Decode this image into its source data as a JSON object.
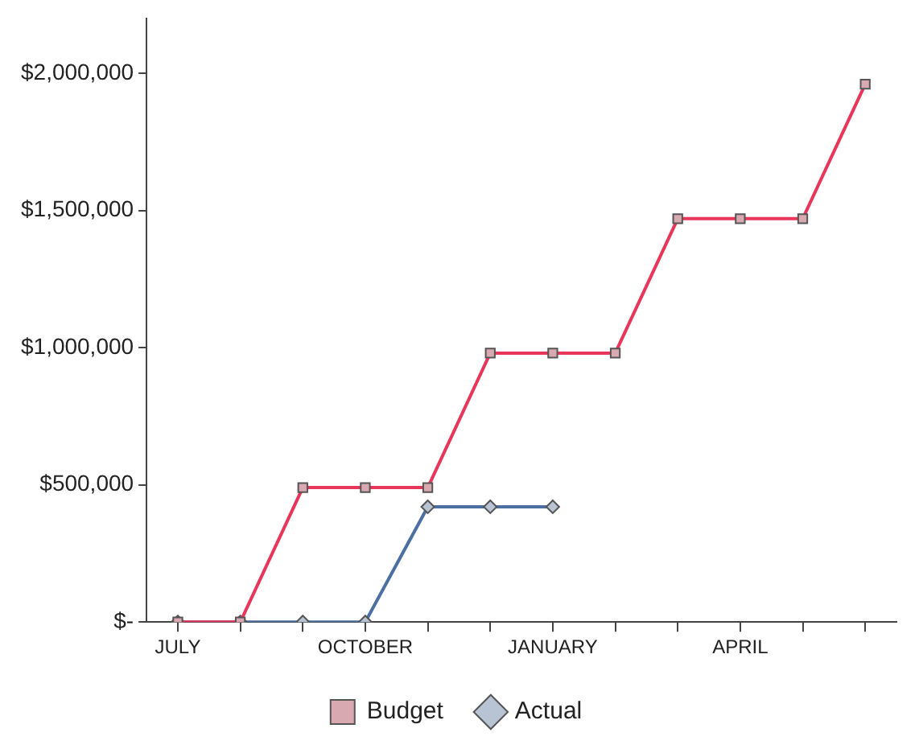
{
  "chart_data": {
    "type": "line",
    "categories": [
      "JULY",
      null,
      null,
      "OCTOBER",
      null,
      null,
      "JANUARY",
      null,
      null,
      "APRIL",
      null,
      null
    ],
    "series": [
      {
        "name": "Budget",
        "color": "#e8365a",
        "marker": "square",
        "values": [
          0,
          0,
          490000,
          490000,
          490000,
          980000,
          980000,
          980000,
          1470000,
          1470000,
          1470000,
          1960000
        ]
      },
      {
        "name": "Actual",
        "color": "#4a6fa0",
        "marker": "diamond",
        "values": [
          0,
          0,
          0,
          0,
          420000,
          420000,
          420000,
          null,
          null,
          null,
          null,
          null
        ]
      }
    ],
    "ylim": [
      0,
      2200000
    ],
    "yticks": [
      {
        "value": 0,
        "label": "$-"
      },
      {
        "value": 500000,
        "label": "$500,000"
      },
      {
        "value": 1000000,
        "label": "$1,000,000"
      },
      {
        "value": 1500000,
        "label": "$1,500,000"
      },
      {
        "value": 2000000,
        "label": "$2,000,000"
      }
    ],
    "grid": false,
    "legend": "bottom",
    "line_style": "solid"
  }
}
